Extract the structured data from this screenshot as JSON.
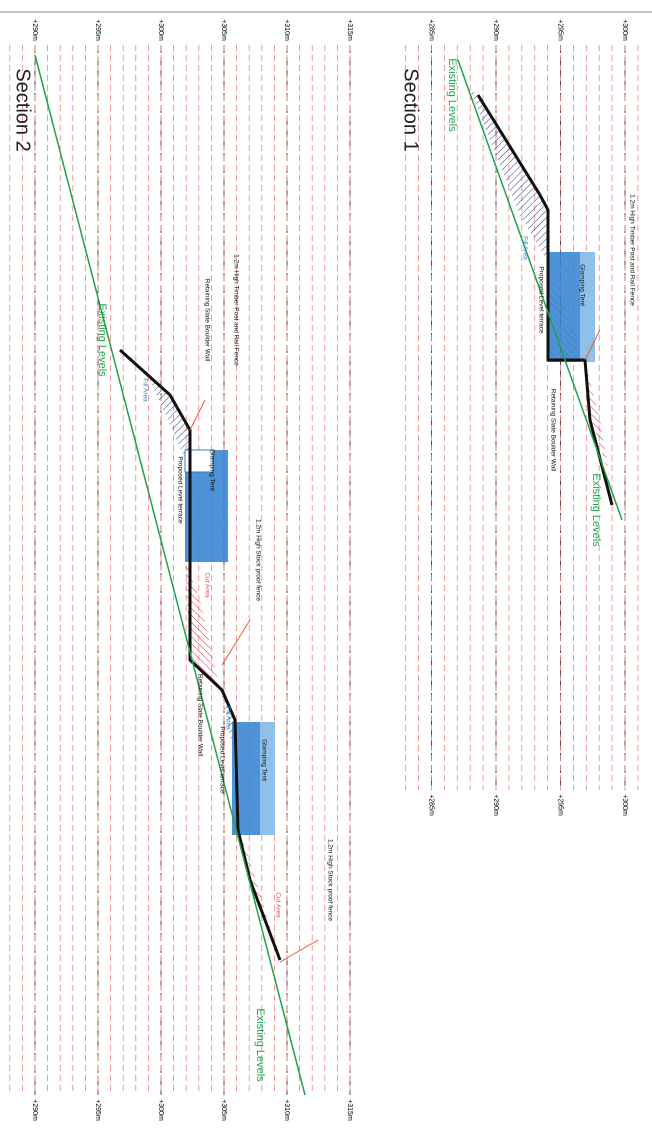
{
  "sections": [
    {
      "title": "Section 1",
      "levels_top": [
        "+300m",
        "+295m",
        "+290m",
        "+285m"
      ],
      "levels_bottom": [
        "+300m",
        "+295m",
        "+290m",
        "+285m"
      ],
      "labels": [
        "Existing Levels",
        "1.2m High Timber Post and Rail Fence",
        "Glamping Tent",
        "Proposed Level terrace",
        "Fill Area",
        "Retaining Slate Boulder Wall",
        "Existing Levels"
      ]
    },
    {
      "title": "Section 2",
      "levels_top": [
        "+315m",
        "+310m",
        "+305m",
        "+300m",
        "+295m",
        "+290m"
      ],
      "levels_bottom": [
        "+315m",
        "+310m",
        "+305m",
        "+300m",
        "+295m",
        "+290m"
      ],
      "labels": [
        "Existing Levels",
        "1.2m High Timber Post and Rail Fence",
        "Retaining Slate Boulder Wall",
        "Fill Area",
        "Glamping Tent",
        "Proposed Level terrace",
        "1.2m High Stock proof fence",
        "Cut Area",
        "Retaining Slate Boulder Wall",
        "Fill Area",
        "Proposed Level terrace",
        "Glamping Tent",
        "1.2m High Stock proof fence",
        "Cut Area",
        "Existing Levels"
      ]
    }
  ]
}
